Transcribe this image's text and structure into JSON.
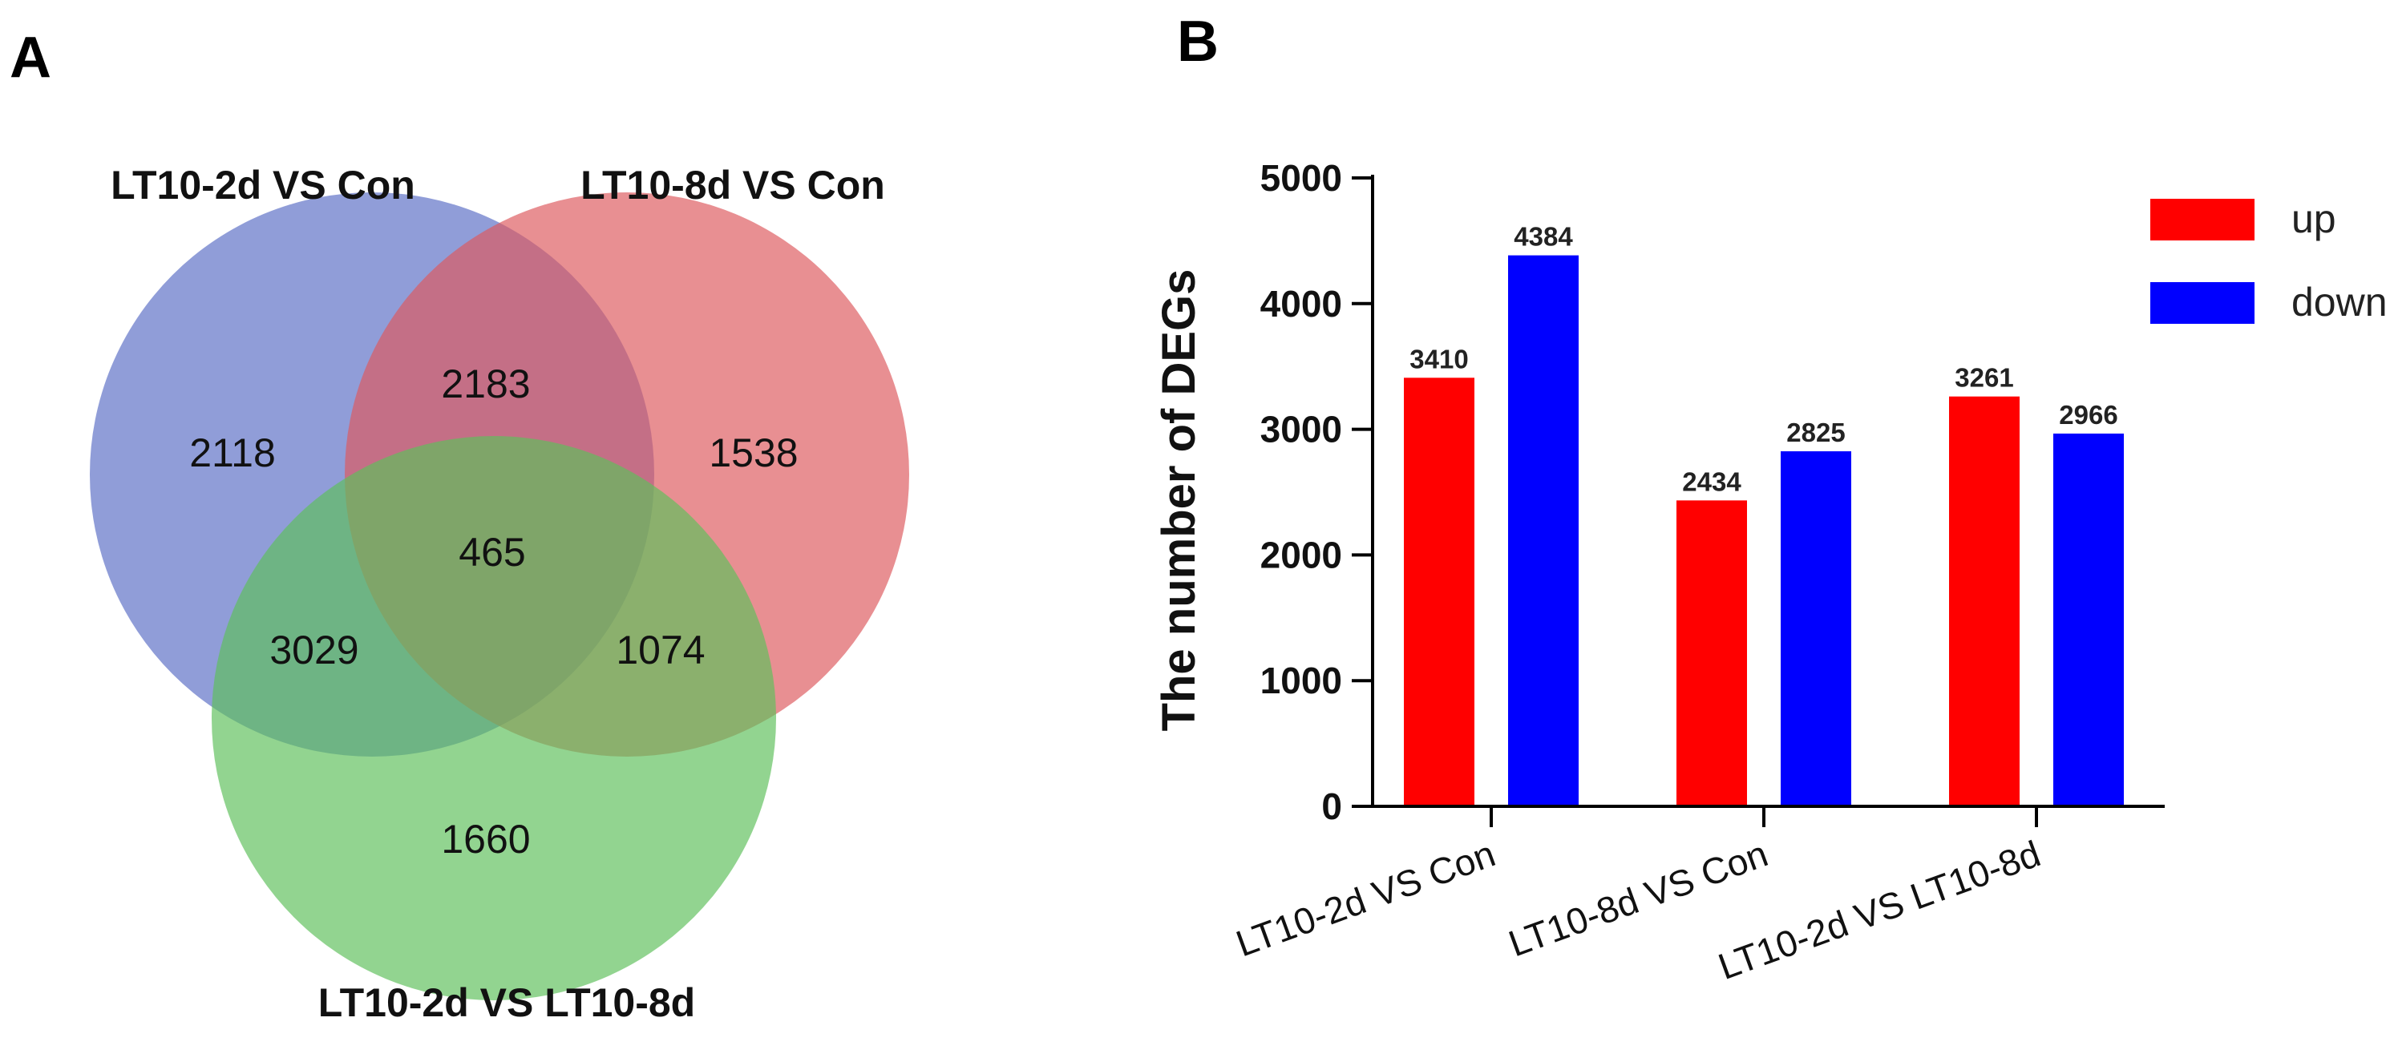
{
  "panels": {
    "a_label": "A",
    "b_label": "B"
  },
  "venn": {
    "sets": [
      {
        "name": "LT10-2d VS Con",
        "color": "#5b6fc6"
      },
      {
        "name": "LT10-8d VS Con",
        "color": "#dd5a5e"
      },
      {
        "name": "LT10-2d VS LT10-8d",
        "color": "#5fbf5c"
      }
    ],
    "regions": {
      "only_2d_con": "2118",
      "only_8d_con": "1538",
      "only_2d_8d": "1660",
      "2d_con_and_8d_con": "2183",
      "2d_con_and_2d_8d": "3029",
      "8d_con_and_2d_8d": "1074",
      "all_three": "465"
    }
  },
  "chart_data": {
    "type": "bar",
    "categories": [
      "LT10-2d VS Con",
      "LT10-8d VS Con",
      "LT10-2d VS LT10-8d"
    ],
    "series": [
      {
        "name": "up",
        "values": [
          3410,
          2434,
          3261
        ],
        "color": "#ff0000"
      },
      {
        "name": "down",
        "values": [
          4384,
          2825,
          2966
        ],
        "color": "#0000ff"
      }
    ],
    "ylabel": "The number of DEGs",
    "xlabel": "",
    "ylim": [
      0,
      5000
    ],
    "yticks": [
      0,
      1000,
      2000,
      3000,
      4000,
      5000
    ],
    "legend": "top-right",
    "grid": false
  }
}
